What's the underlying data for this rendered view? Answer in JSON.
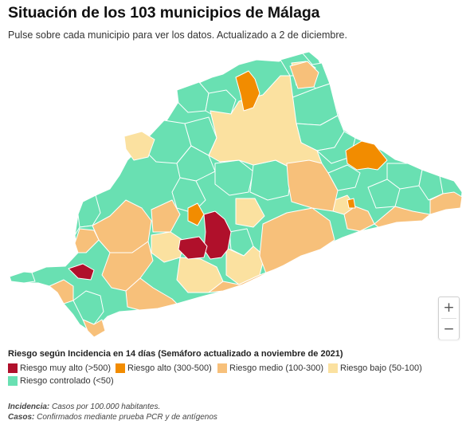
{
  "header": {
    "title": "Situación de los 103 municipios de Málaga",
    "subtitle": "Pulse sobre cada municipio para ver los datos. Actualizado a 2 de diciembre."
  },
  "colors": {
    "muy_alto": "#b0102b",
    "alto": "#f28c00",
    "medio": "#f7c07a",
    "bajo": "#fbe1a0",
    "controlado": "#69e0b2",
    "border": "#ffffff"
  },
  "zoom": {
    "in_label": "+",
    "out_label": "−"
  },
  "legend": {
    "title": "Riesgo según Incidencia en 14 días (Semáforo actualizado a noviembre de 2021)",
    "items": [
      {
        "key": "muy_alto",
        "label": "Riesgo muy alto (>500)",
        "color": "#b0102b"
      },
      {
        "key": "alto",
        "label": "Riesgo alto (300-500)",
        "color": "#f28c00"
      },
      {
        "key": "medio",
        "label": "Riesgo medio (100-300)",
        "color": "#f7c07a"
      },
      {
        "key": "bajo",
        "label": "Riesgo bajo (50-100)",
        "color": "#fbe1a0"
      },
      {
        "key": "controlado",
        "label": "Riesgo controlado (<50)",
        "color": "#69e0b2"
      }
    ]
  },
  "notes": {
    "incidencia_label": "Incidencia:",
    "incidencia_text": " Casos por 100.000 habitantes.",
    "casos_label": "Casos:",
    "casos_text": " Confirmados mediante prueba PCR y de antígenos"
  }
}
